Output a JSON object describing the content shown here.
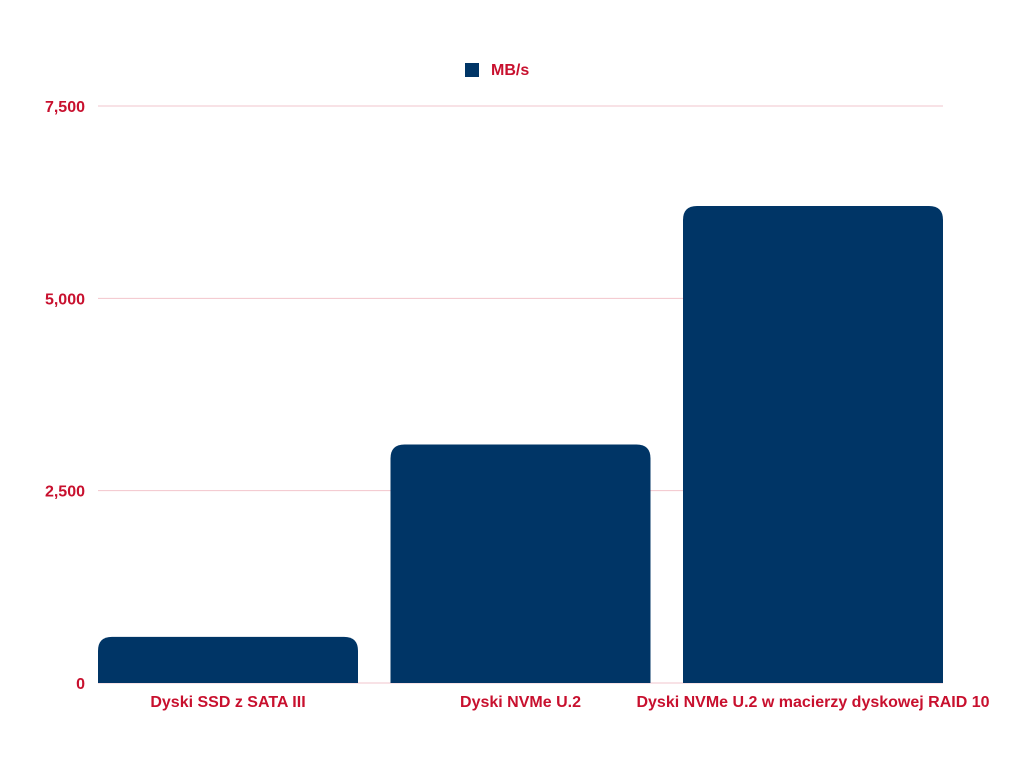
{
  "colors": {
    "bar": "#003566",
    "text": "#c8102e",
    "grid": "#f2c4cc"
  },
  "chart_data": {
    "type": "bar",
    "categories": [
      "Dyski SSD z SATA III",
      "Dyski NVMe U.2",
      "Dyski NVMe U.2 w macierzy dyskowej RAID 10"
    ],
    "series": [
      {
        "name": "MB/s",
        "values": [
          600,
          3100,
          6200
        ]
      }
    ],
    "ylim": [
      0,
      7500
    ],
    "yticks": [
      0,
      2500,
      5000,
      7500
    ],
    "ytick_labels": [
      "0",
      "2,500",
      "5,000",
      "7,500"
    ],
    "grid": true,
    "legend": "top-center"
  }
}
